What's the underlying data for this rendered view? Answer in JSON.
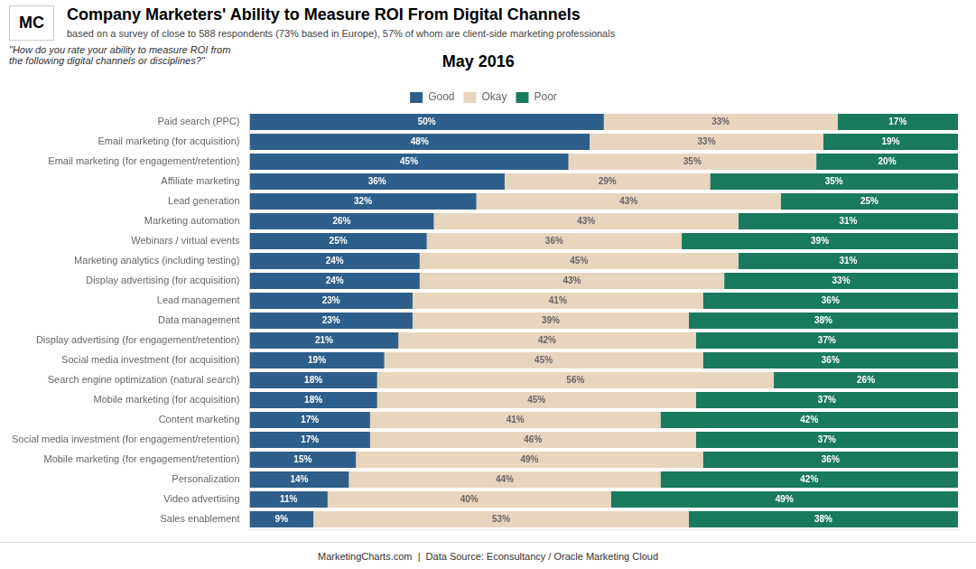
{
  "chart_data": {
    "type": "bar",
    "orientation": "horizontal",
    "stacked": true,
    "title": "Company Marketers' Ability to Measure ROI From Digital Channels",
    "subtitle": "based on a survey of close to 588 respondents (73% based in Europe), 57% of whom are client-side marketing professionals",
    "annotations": [
      "\"How do you rate your ability to measure ROI from\nthe following digital channels or disciplines?\"",
      "May 2016",
      "MC",
      "MarketingCharts.com  |  Data Source: Econsultancy / Oracle Marketing Cloud"
    ],
    "categories": [
      "Paid search (PPC)",
      "Email marketing (for acquisition)",
      "Email marketing (for engagement/retention)",
      "Affiliate marketing",
      "Lead generation",
      "Marketing automation",
      "Webinars / virtual events",
      "Marketing analytics (including testing)",
      "Display advertising (for acquisition)",
      "Lead management",
      "Data management",
      "Display advertising (for engagement/retention)",
      "Social media investment (for acquisition)",
      "Search engine optimization (natural search)",
      "Mobile marketing (for acquisition)",
      "Content marketing",
      "Social media investment (for engagement/retention)",
      "Mobile marketing (for engagement/retention)",
      "Personalization",
      "Video advertising",
      "Sales enablement"
    ],
    "series": [
      {
        "name": "Good",
        "color": "#2e5f8a",
        "values": [
          50,
          48,
          45,
          36,
          32,
          26,
          25,
          24,
          24,
          23,
          23,
          21,
          19,
          18,
          18,
          17,
          17,
          15,
          14,
          11,
          9
        ],
        "value_labels": [
          "50%",
          "48%",
          "45%",
          "36%",
          "32%",
          "26%",
          "25%",
          "24%",
          "24%",
          "23%",
          "23%",
          "21%",
          "19%",
          "18%",
          "18%",
          "17%",
          "17%",
          "15%",
          "14%",
          "11%",
          "9%"
        ]
      },
      {
        "name": "Okay",
        "color": "#e8d5be",
        "values": [
          33,
          33,
          35,
          29,
          43,
          43,
          36,
          45,
          43,
          41,
          39,
          42,
          45,
          56,
          45,
          41,
          46,
          49,
          44,
          40,
          53
        ],
        "value_labels": [
          "33%",
          "33%",
          "35%",
          "29%",
          "43%",
          "43%",
          "36%",
          "45%",
          "43%",
          "41%",
          "39%",
          "42%",
          "45%",
          "56%",
          "45%",
          "41%",
          "46%",
          "49%",
          "44%",
          "40%",
          "53%"
        ]
      },
      {
        "name": "Poor",
        "color": "#1a7a5e",
        "values": [
          17,
          19,
          20,
          35,
          25,
          31,
          39,
          31,
          33,
          36,
          38,
          37,
          36,
          26,
          37,
          42,
          37,
          36,
          42,
          49,
          38
        ],
        "value_labels": [
          "17%",
          "19%",
          "20%",
          "35%",
          "25%",
          "31%",
          "39%",
          "31%",
          "33%",
          "36%",
          "38%",
          "37%",
          "36%",
          "26%",
          "37%",
          "42%",
          "37%",
          "36%",
          "42%",
          "49%",
          "38%"
        ]
      }
    ],
    "xlim": [
      0,
      100
    ],
    "grid": false,
    "legend": "top",
    "data_labels": true,
    "tick_labels": "y"
  }
}
